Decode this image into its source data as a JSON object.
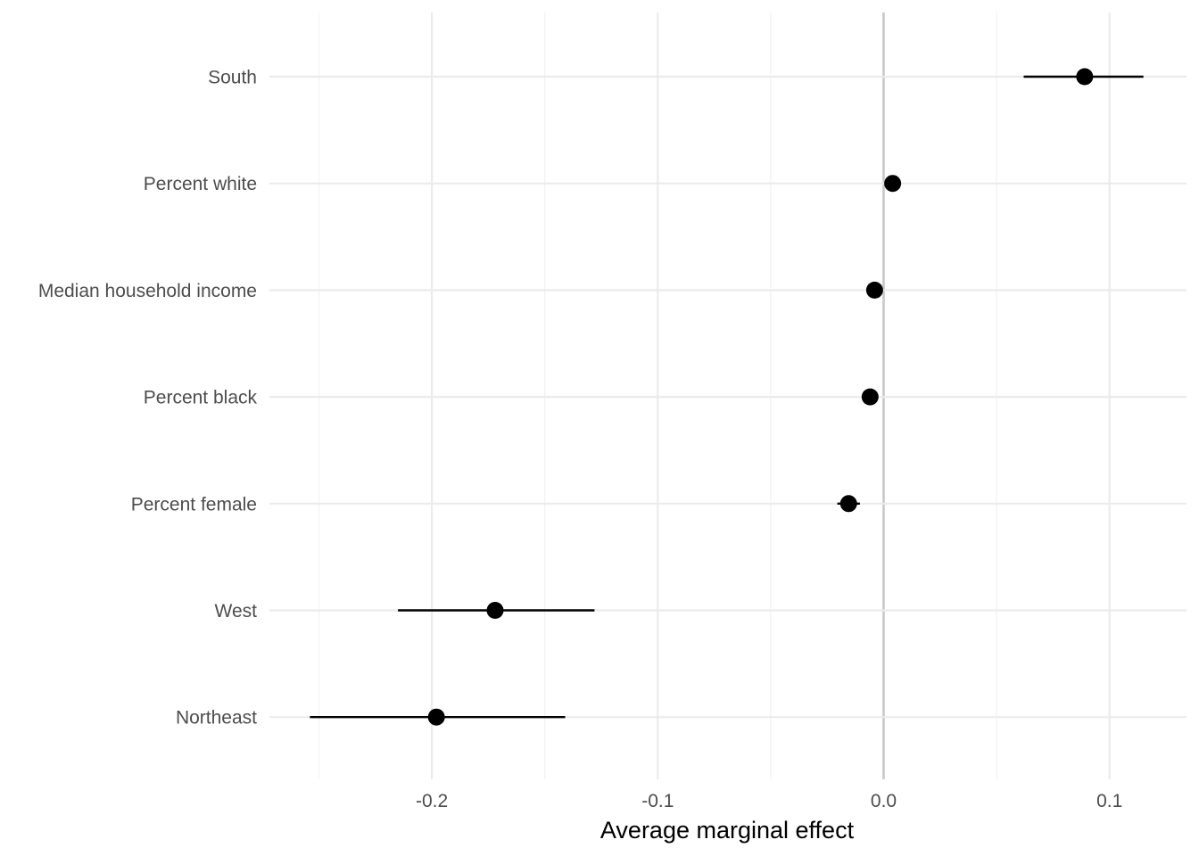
{
  "chart_data": {
    "type": "dot-whisker",
    "xlabel": "Average marginal effect",
    "ylabel": "",
    "xlim": [
      -0.275,
      0.135
    ],
    "x_ticks": [
      -0.2,
      -0.1,
      0.0,
      0.1
    ],
    "x_tick_labels": [
      "-0.2",
      "-0.1",
      "0.0",
      "0.1"
    ],
    "reference_line": 0.0,
    "grid": true,
    "points": [
      {
        "label": "South",
        "estimate": 0.089,
        "lower": 0.062,
        "upper": 0.115
      },
      {
        "label": "Percent white",
        "estimate": 0.004,
        "lower": 0.004,
        "upper": 0.004
      },
      {
        "label": "Median household income",
        "estimate": -0.004,
        "lower": -0.004,
        "upper": -0.004
      },
      {
        "label": "Percent black",
        "estimate": -0.006,
        "lower": -0.006,
        "upper": -0.006
      },
      {
        "label": "Percent female",
        "estimate": -0.0155,
        "lower": -0.0205,
        "upper": -0.0105
      },
      {
        "label": "West",
        "estimate": -0.172,
        "lower": -0.215,
        "upper": -0.128
      },
      {
        "label": "Northeast",
        "estimate": -0.198,
        "lower": -0.254,
        "upper": -0.141
      }
    ],
    "colors": {
      "point": "#000000",
      "major_grid": "#ebebeb",
      "minor_grid": "#f2f2f2",
      "zero_line": "#c8c8c8"
    }
  }
}
